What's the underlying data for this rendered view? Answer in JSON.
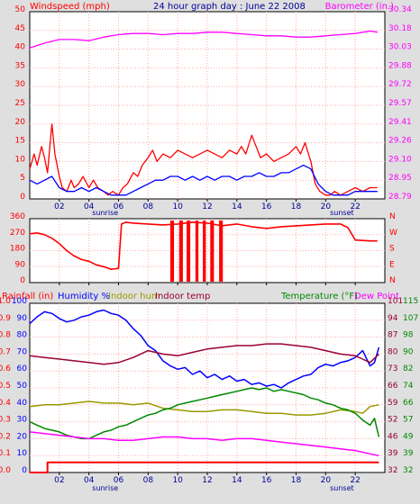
{
  "colors": {
    "red": "#ff0000",
    "blue": "#0000ff",
    "magenta": "#ff00ff",
    "olive": "#999900",
    "maroon": "#990033",
    "green": "#008800",
    "darkblue": "#000099",
    "teal": "#006666",
    "grid": "#ffaaaa"
  },
  "chart_data": [
    {
      "type": "line",
      "title": "24 hour graph day : June 22 2008",
      "ylabel": "Windspeed (mph)",
      "y2label": "Barometer (in.)",
      "ylim": [
        0,
        50
      ],
      "y2lim": [
        28.79,
        30.34
      ],
      "yticks": [
        "0",
        "5",
        "10",
        "15",
        "20",
        "25",
        "30",
        "35",
        "40",
        "45",
        "50"
      ],
      "y2ticks": [
        "28.79",
        "28.95",
        "29.10",
        "29.26",
        "29.41",
        "29.57",
        "29.72",
        "29.88",
        "30.03",
        "30.18",
        "30.34"
      ],
      "xticks": [
        "02",
        "04",
        "06",
        "08",
        "10",
        "12",
        "14",
        "16",
        "18",
        "20",
        "22"
      ],
      "xlim": [
        0,
        24
      ],
      "marks": [
        {
          "label": "sunrise",
          "x": 5.1
        },
        {
          "label": "sunset",
          "x": 21.1
        }
      ],
      "series": [
        {
          "color": "red",
          "axis": "left",
          "x": [
            0,
            0.3,
            0.5,
            0.8,
            1.0,
            1.2,
            1.5,
            1.7,
            2.0,
            2.2,
            2.5,
            2.8,
            3.0,
            3.3,
            3.6,
            4.0,
            4.3,
            4.6,
            5.0,
            5.3,
            5.6,
            6.0,
            6.3,
            6.6,
            7.0,
            7.3,
            7.6,
            8.0,
            8.3,
            8.6,
            9.0,
            9.5,
            10.0,
            10.5,
            11.0,
            11.5,
            12.0,
            12.5,
            13.0,
            13.5,
            14.0,
            14.3,
            14.6,
            15.0,
            15.3,
            15.6,
            16.0,
            16.5,
            17.0,
            17.5,
            18.0,
            18.3,
            18.6,
            19.0,
            19.3,
            19.6,
            20.0,
            20.3,
            20.6,
            21.0,
            21.5,
            22.0,
            22.5,
            23.0,
            23.5
          ],
          "values": [
            8,
            12,
            9,
            14,
            11,
            7,
            20,
            12,
            6,
            3,
            2,
            5,
            3,
            4,
            6,
            3,
            5,
            3,
            2,
            1,
            2,
            1,
            3,
            4,
            7,
            6,
            9,
            11,
            13,
            10,
            12,
            11,
            13,
            12,
            11,
            12,
            13,
            12,
            11,
            13,
            12,
            14,
            12,
            17,
            14,
            11,
            12,
            10,
            11,
            12,
            14,
            12,
            15,
            10,
            4,
            2,
            1,
            1,
            2,
            1,
            2,
            3,
            2,
            3,
            3
          ]
        },
        {
          "color": "blue",
          "axis": "left",
          "x": [
            0,
            0.5,
            1.0,
            1.5,
            2.0,
            2.5,
            3.0,
            3.5,
            4.0,
            4.5,
            5.0,
            5.5,
            6.0,
            6.5,
            7.0,
            7.5,
            8.0,
            8.5,
            9.0,
            9.5,
            10.0,
            10.5,
            11.0,
            11.5,
            12.0,
            12.5,
            13.0,
            13.5,
            14.0,
            14.5,
            15.0,
            15.5,
            16.0,
            16.5,
            17.0,
            17.5,
            18.0,
            18.5,
            19.0,
            19.5,
            20.0,
            20.5,
            21.0,
            21.5,
            22.0,
            22.5,
            23.0,
            23.5
          ],
          "values": [
            5,
            4,
            5,
            6,
            3,
            2,
            2,
            3,
            2,
            3,
            2,
            1,
            1,
            1,
            2,
            3,
            4,
            5,
            5,
            6,
            6,
            5,
            6,
            5,
            6,
            5,
            6,
            6,
            5,
            6,
            6,
            7,
            6,
            6,
            7,
            7,
            8,
            9,
            8,
            4,
            2,
            1,
            1,
            1,
            2,
            2,
            2,
            2
          ]
        },
        {
          "color": "magenta",
          "axis": "right",
          "x": [
            0,
            1,
            2,
            3,
            4,
            5,
            6,
            7,
            8,
            9,
            10,
            11,
            12,
            13,
            14,
            15,
            16,
            17,
            18,
            19,
            20,
            21,
            22,
            23,
            23.5
          ],
          "values": [
            30.04,
            30.08,
            30.11,
            30.11,
            30.1,
            30.13,
            30.15,
            30.16,
            30.16,
            30.15,
            30.16,
            30.16,
            30.17,
            30.17,
            30.16,
            30.15,
            30.14,
            30.14,
            30.13,
            30.13,
            30.14,
            30.15,
            30.16,
            30.18,
            30.17
          ]
        }
      ]
    },
    {
      "type": "line",
      "ylim": [
        0,
        360
      ],
      "yticks": [
        "0",
        "90",
        "180",
        "270",
        "360"
      ],
      "y2ticks": [
        "N",
        "E",
        "S",
        "W",
        "N"
      ],
      "xticks": [
        "02",
        "04",
        "06",
        "08",
        "10",
        "12",
        "14",
        "16",
        "18",
        "20",
        "22"
      ],
      "xlim": [
        0,
        24
      ],
      "series": [
        {
          "color": "red",
          "axis": "left",
          "x": [
            0,
            0.5,
            1.0,
            1.5,
            2.0,
            2.5,
            3.0,
            3.5,
            4.0,
            4.5,
            5.0,
            5.5,
            6.0,
            6.2,
            6.5,
            7.0,
            8.0,
            9.0,
            10.0,
            11.0,
            12.0,
            13.0,
            14.0,
            15.0,
            16.0,
            17.0,
            18.0,
            19.0,
            20.0,
            21.0,
            21.5,
            22.0,
            23.0,
            23.5
          ],
          "values": [
            275,
            280,
            270,
            250,
            220,
            180,
            150,
            130,
            120,
            100,
            90,
            75,
            80,
            330,
            340,
            335,
            330,
            325,
            330,
            340,
            335,
            320,
            330,
            315,
            305,
            315,
            320,
            325,
            330,
            330,
            310,
            240,
            235,
            235
          ]
        }
      ],
      "gaps": [
        {
          "x": 9.5,
          "width": 0.25
        },
        {
          "x": 10.1,
          "width": 0.25
        },
        {
          "x": 10.6,
          "width": 0.25
        },
        {
          "x": 11.2,
          "width": 0.2
        },
        {
          "x": 11.7,
          "width": 0.2
        },
        {
          "x": 12.2,
          "width": 0.25
        },
        {
          "x": 12.8,
          "width": 0.25
        }
      ]
    },
    {
      "type": "line",
      "labels": {
        "rainfall": "Rainfall (in)",
        "humidity": "Humidity %",
        "indoor_hum": "Indoor hum",
        "indoor_temp": "Indoor temp",
        "temperature": "Temperature (°F)",
        "dew_point": "Dew Point"
      },
      "rain_ticks": [
        "0.0",
        "0.1",
        "0.2",
        "0.3",
        "0.4",
        "0.5",
        "0.6",
        "0.7",
        "0.8",
        "0.9",
        "1.0"
      ],
      "hum_ticks": [
        "0",
        "10",
        "20",
        "30",
        "40",
        "50",
        "60",
        "70",
        "80",
        "90",
        "100"
      ],
      "temp_ticks_a": [
        "32",
        "39",
        "46",
        "52",
        "59",
        "66",
        "73",
        "80",
        "87",
        "94",
        "101"
      ],
      "temp_ticks_b": [
        "32",
        "39",
        "49",
        "57",
        "66",
        "74",
        "82",
        "90",
        "98",
        "107",
        "115"
      ],
      "xticks": [
        "02",
        "04",
        "06",
        "08",
        "10",
        "12",
        "14",
        "16",
        "18",
        "20",
        "22"
      ],
      "xlim": [
        0,
        24
      ],
      "marks": [
        {
          "label": "sunrise",
          "x": 5.1
        },
        {
          "label": "sunset",
          "x": 21.1
        }
      ],
      "series": [
        {
          "color": "blue",
          "axis": "humidity",
          "x": [
            0,
            0.5,
            1,
            1.5,
            2,
            2.5,
            3,
            3.5,
            4,
            4.5,
            5,
            5.5,
            6,
            6.5,
            7,
            7.5,
            8,
            8.5,
            9,
            9.5,
            10,
            10.5,
            11,
            11.5,
            12,
            12.5,
            13,
            13.5,
            14,
            14.5,
            15,
            15.5,
            16,
            16.5,
            17,
            17.5,
            18,
            18.5,
            19,
            19.5,
            20,
            20.5,
            21,
            21.5,
            22,
            22.5,
            23,
            23.3,
            23.6
          ],
          "values": [
            88,
            92,
            95,
            94,
            91,
            89,
            90,
            92,
            93,
            95,
            96,
            94,
            93,
            90,
            85,
            81,
            75,
            72,
            66,
            63,
            61,
            62,
            58,
            60,
            56,
            58,
            55,
            57,
            54,
            55,
            52,
            53,
            51,
            52,
            50,
            53,
            55,
            57,
            58,
            62,
            64,
            63,
            65,
            66,
            68,
            72,
            63,
            65,
            74
          ]
        },
        {
          "color": "maroon",
          "axis": "humidity",
          "x": [
            0,
            1,
            2,
            3,
            4,
            5,
            6,
            7,
            8,
            9,
            10,
            11,
            12,
            13,
            14,
            15,
            16,
            17,
            18,
            19,
            20,
            21,
            22,
            22.5,
            23,
            23.6
          ],
          "values": [
            69,
            68,
            67,
            66,
            65,
            64,
            65,
            68,
            72,
            70,
            69,
            71,
            73,
            74,
            75,
            75,
            76,
            76,
            75,
            74,
            72,
            70,
            69,
            67,
            65,
            70
          ]
        },
        {
          "color": "olive",
          "axis": "humidity",
          "x": [
            0,
            1,
            2,
            3,
            4,
            5,
            6,
            7,
            8,
            9,
            10,
            11,
            12,
            13,
            14,
            15,
            16,
            17,
            18,
            19,
            20,
            21,
            22,
            22.5,
            23,
            23.6
          ],
          "values": [
            39,
            40,
            40,
            41,
            42,
            41,
            41,
            40,
            41,
            38,
            37,
            36,
            36,
            37,
            37,
            36,
            35,
            35,
            34,
            34,
            35,
            37,
            36,
            35,
            39,
            40
          ]
        },
        {
          "color": "green",
          "axis": "humidity",
          "x": [
            0,
            0.5,
            1,
            1.5,
            2,
            2.5,
            3,
            3.5,
            4,
            4.5,
            5,
            5.5,
            6,
            6.5,
            7,
            7.5,
            8,
            8.5,
            9,
            9.5,
            10,
            10.5,
            11,
            11.5,
            12,
            12.5,
            13,
            13.5,
            14,
            14.5,
            15,
            15.5,
            16,
            16.5,
            17,
            17.5,
            18,
            18.5,
            19,
            19.5,
            20,
            20.5,
            21,
            21.5,
            22,
            22.5,
            23,
            23.3,
            23.6
          ],
          "values": [
            30,
            28,
            26,
            25,
            24,
            22,
            21,
            20,
            20,
            22,
            24,
            25,
            27,
            28,
            30,
            32,
            34,
            35,
            37,
            38,
            40,
            41,
            42,
            43,
            44,
            45,
            46,
            47,
            48,
            49,
            50,
            49,
            50,
            48,
            49,
            48,
            47,
            46,
            44,
            43,
            41,
            40,
            38,
            37,
            35,
            31,
            28,
            32,
            21
          ]
        },
        {
          "color": "magenta",
          "axis": "humidity",
          "x": [
            0,
            1,
            2,
            3,
            4,
            5,
            6,
            7,
            8,
            9,
            10,
            11,
            12,
            13,
            14,
            15,
            16,
            17,
            18,
            19,
            20,
            21,
            22,
            23,
            23.6
          ],
          "values": [
            24,
            23,
            22,
            21,
            20,
            20,
            19,
            19,
            20,
            21,
            21,
            20,
            20,
            19,
            20,
            20,
            19,
            18,
            17,
            16,
            15,
            14,
            13,
            11,
            10
          ]
        },
        {
          "color": "red",
          "axis": "rain",
          "x": [
            0,
            1.2,
            1.2,
            23.6
          ],
          "values": [
            0.0,
            0.0,
            0.06,
            0.06
          ]
        }
      ]
    }
  ]
}
